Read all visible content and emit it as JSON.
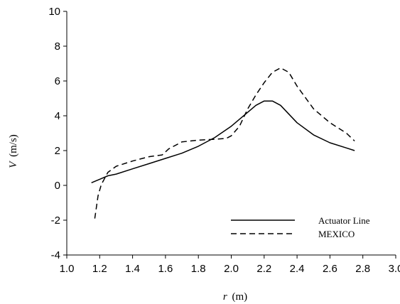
{
  "chart_data": {
    "type": "line",
    "title": "",
    "xlabel": {
      "symbol": "r",
      "unit": "(m)"
    },
    "ylabel": {
      "symbol": "V",
      "unit": "(m/s)"
    },
    "xlim": [
      1.0,
      3.0
    ],
    "ylim": [
      -4,
      10
    ],
    "xticks": [
      "1.0",
      "1.2",
      "1.4",
      "1.6",
      "1.8",
      "2.0",
      "2.2",
      "2.4",
      "2.6",
      "2.8",
      "3.0"
    ],
    "yticks": [
      "-4",
      "-2",
      "0",
      "2",
      "4",
      "6",
      "8",
      "10"
    ],
    "grid": false,
    "legend_position": "bottom-right",
    "series": [
      {
        "name": "Actuator Line",
        "style": "solid",
        "color": "#000000",
        "x": [
          1.15,
          1.2,
          1.25,
          1.3,
          1.4,
          1.5,
          1.6,
          1.7,
          1.8,
          1.9,
          2.0,
          2.1,
          2.15,
          2.2,
          2.25,
          2.3,
          2.4,
          2.5,
          2.6,
          2.7,
          2.75
        ],
        "y": [
          0.15,
          0.35,
          0.55,
          0.65,
          0.95,
          1.25,
          1.55,
          1.85,
          2.25,
          2.75,
          3.4,
          4.2,
          4.6,
          4.85,
          4.85,
          4.6,
          3.6,
          2.9,
          2.45,
          2.15,
          2.0
        ]
      },
      {
        "name": "MEXICO",
        "style": "dashed",
        "color": "#000000",
        "x": [
          1.17,
          1.19,
          1.21,
          1.25,
          1.3,
          1.4,
          1.5,
          1.58,
          1.62,
          1.7,
          1.8,
          1.9,
          1.97,
          2.0,
          2.05,
          2.1,
          2.15,
          2.2,
          2.25,
          2.3,
          2.35,
          2.4,
          2.5,
          2.6,
          2.7,
          2.75
        ],
        "y": [
          -1.9,
          -0.6,
          0.05,
          0.75,
          1.1,
          1.4,
          1.65,
          1.75,
          2.1,
          2.5,
          2.6,
          2.65,
          2.7,
          2.85,
          3.4,
          4.4,
          5.2,
          5.9,
          6.5,
          6.75,
          6.5,
          5.7,
          4.4,
          3.6,
          3.0,
          2.55
        ]
      }
    ]
  }
}
